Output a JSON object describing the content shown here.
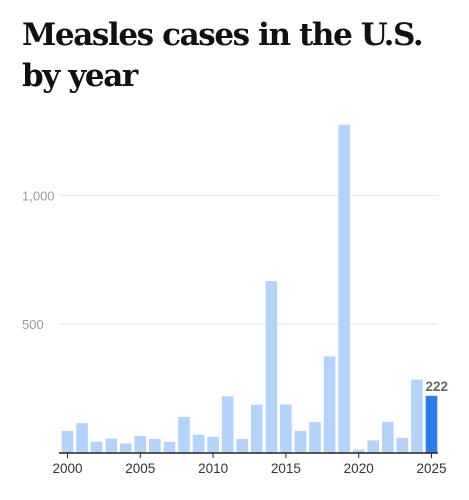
{
  "chart_data": {
    "type": "bar",
    "title": "Measles cases in the U.S. by year",
    "xlabel": "",
    "ylabel": "",
    "x_tick_labels": [
      "2000",
      "2005",
      "2010",
      "2015",
      "2020",
      "2025"
    ],
    "y_tick_labels": [
      "500",
      "1,000"
    ],
    "ylim": [
      0,
      1300
    ],
    "grid": true,
    "categories": [
      2000,
      2001,
      2002,
      2003,
      2004,
      2005,
      2006,
      2007,
      2008,
      2009,
      2010,
      2011,
      2012,
      2013,
      2014,
      2015,
      2016,
      2017,
      2018,
      2019,
      2020,
      2021,
      2022,
      2023,
      2024,
      2025
    ],
    "values": [
      86,
      116,
      44,
      56,
      37,
      66,
      55,
      43,
      140,
      71,
      63,
      220,
      55,
      187,
      667,
      188,
      86,
      120,
      375,
      1274,
      13,
      49,
      121,
      59,
      285,
      222
    ],
    "highlight": {
      "category": 2025,
      "value_label": "222"
    },
    "colors": {
      "bar": "#b5d3fa",
      "highlight_bar": "#2e7de6",
      "grid": "#e6e6e6",
      "axis": "#222222"
    }
  }
}
